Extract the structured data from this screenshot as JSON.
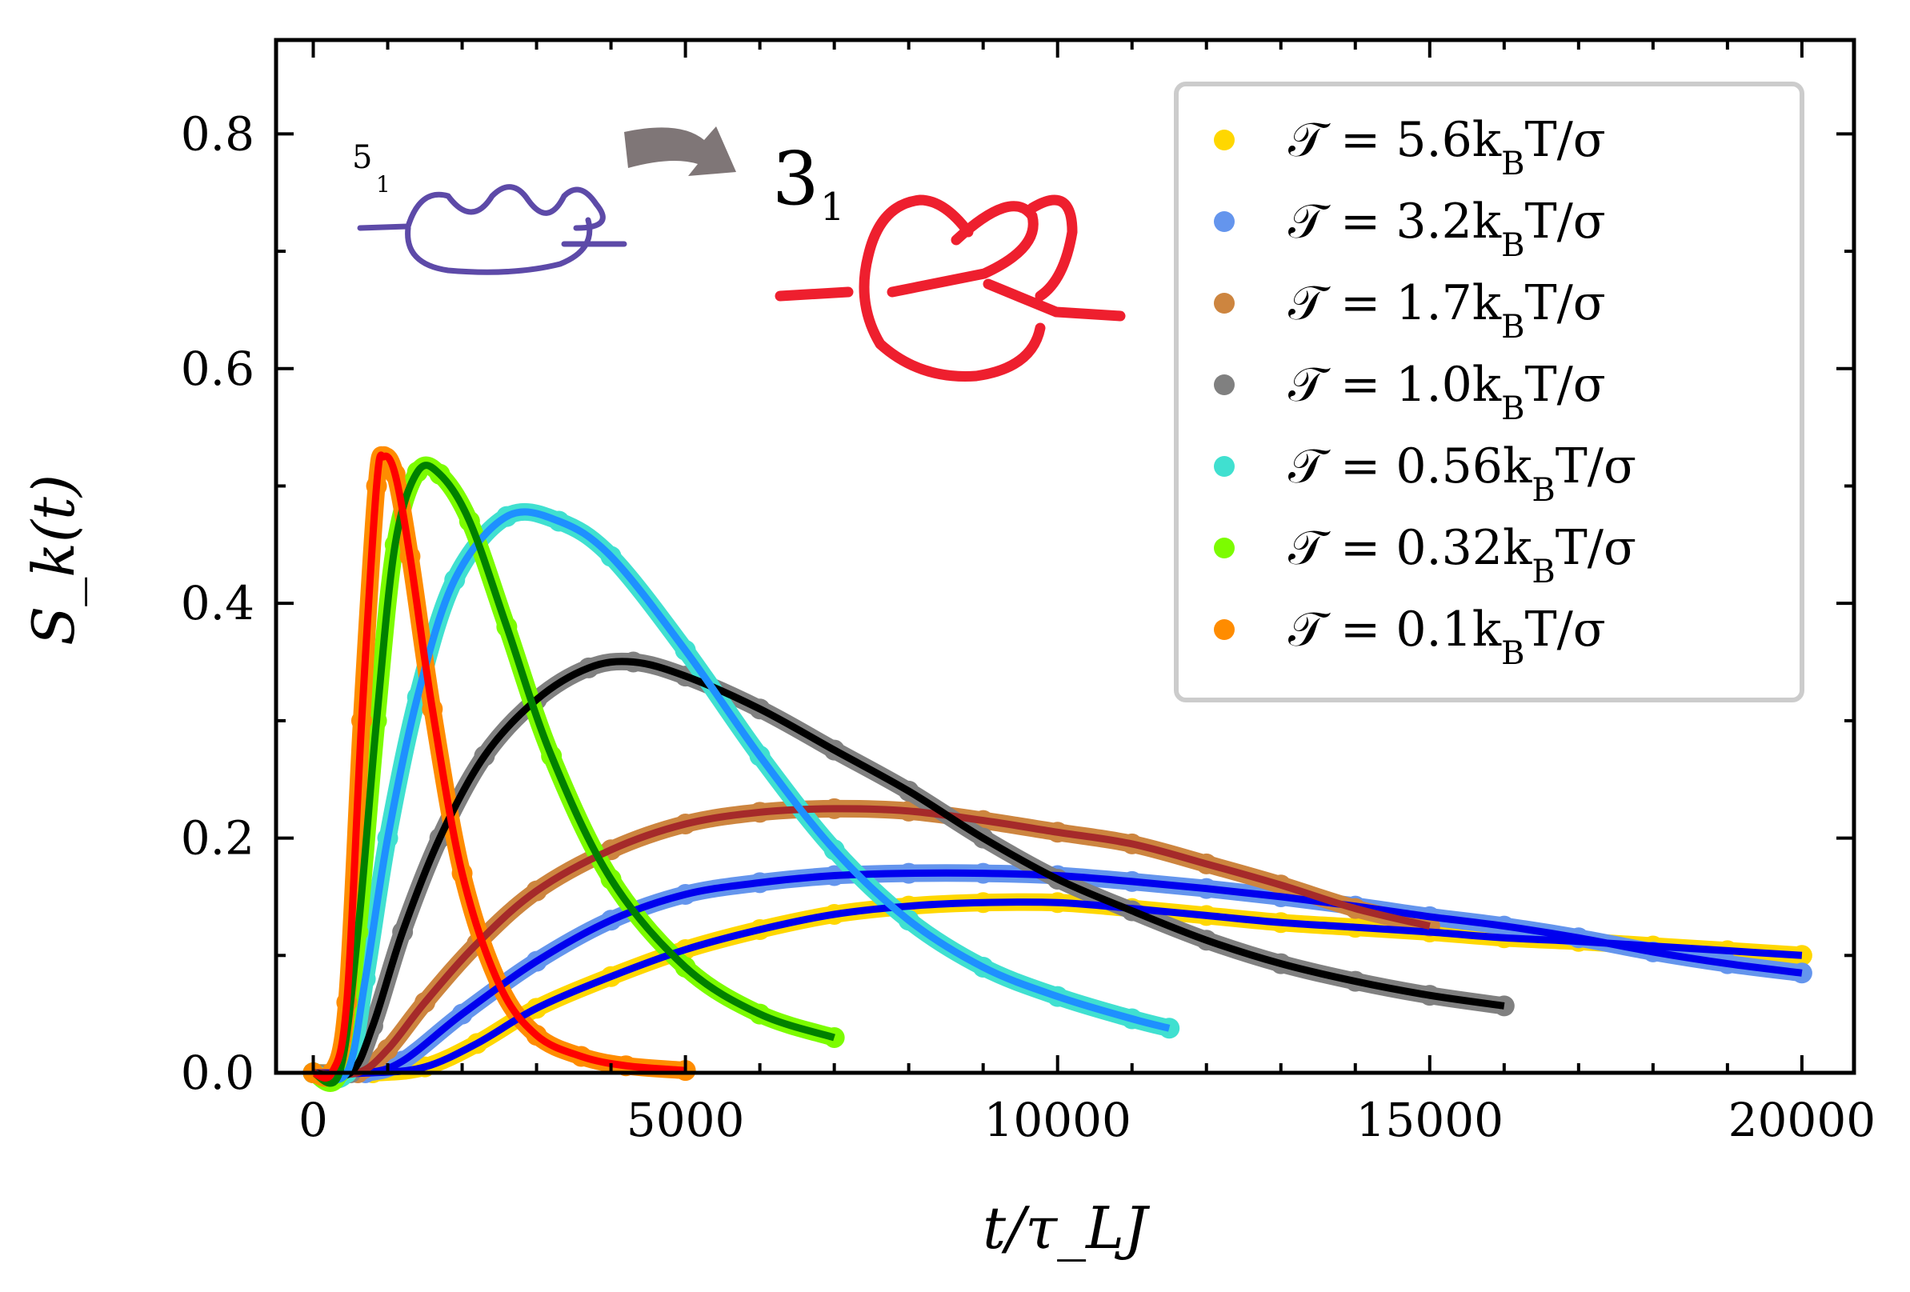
{
  "chart_data": {
    "type": "line",
    "xlabel": "t/τ_LJ",
    "ylabel": "S_k(t)",
    "xlim": [
      -500,
      20700
    ],
    "ylim": [
      0.0,
      0.88
    ],
    "xticks": [
      0,
      5000,
      10000,
      15000,
      20000
    ],
    "xtick_labels": [
      "0",
      "5000",
      "10000",
      "15000",
      "20000"
    ],
    "yticks": [
      0.0,
      0.2,
      0.4,
      0.6,
      0.8
    ],
    "ytick_labels": [
      "0.0",
      "0.2",
      "0.4",
      "0.6",
      "0.8"
    ],
    "grid": false,
    "legend_position": "top-right",
    "inset": {
      "knot_from": "5",
      "knot_from_sub": "1",
      "knot_to": "3",
      "knot_to_sub": "1"
    },
    "series": [
      {
        "name": "𝒯 = 5.6k_BT/σ",
        "label_main": "𝒯 = 5.6k",
        "label_sub": "B",
        "label_end": "T/σ",
        "marker_color": "#FFD700",
        "fit_color": "#0000EE",
        "x": [
          0,
          800,
          1500,
          2200,
          3000,
          4000,
          5000,
          6000,
          7000,
          8000,
          9000,
          10000,
          11000,
          12000,
          13000,
          14000,
          15000,
          16000,
          17000,
          18000,
          19000,
          20000
        ],
        "y": [
          0.0,
          0.0,
          0.005,
          0.025,
          0.055,
          0.082,
          0.105,
          0.122,
          0.135,
          0.142,
          0.145,
          0.145,
          0.14,
          0.134,
          0.128,
          0.124,
          0.12,
          0.115,
          0.112,
          0.108,
          0.104,
          0.1
        ]
      },
      {
        "name": "𝒯 = 3.2k_BT/σ",
        "label_main": "𝒯 = 3.2k",
        "label_sub": "B",
        "label_end": "T/σ",
        "marker_color": "#6495ED",
        "fit_color": "#0000EE",
        "x": [
          0,
          700,
          1200,
          2000,
          3000,
          4000,
          5000,
          6000,
          7000,
          8000,
          9000,
          10000,
          11000,
          12000,
          13000,
          14000,
          15000,
          16000,
          17000,
          18000,
          19000,
          20000
        ],
        "y": [
          0.0,
          0.0,
          0.01,
          0.05,
          0.095,
          0.13,
          0.152,
          0.162,
          0.168,
          0.17,
          0.17,
          0.168,
          0.163,
          0.157,
          0.15,
          0.142,
          0.133,
          0.125,
          0.115,
          0.103,
          0.093,
          0.085
        ]
      },
      {
        "name": "𝒯 = 1.7k_BT/σ",
        "label_main": "𝒯 = 1.7k",
        "label_sub": "B",
        "label_end": "T/σ",
        "marker_color": "#CD853F",
        "fit_color": "#A52A2A",
        "x": [
          0,
          600,
          1000,
          1500,
          2200,
          3000,
          4000,
          5000,
          6000,
          7000,
          8000,
          9000,
          10000,
          11000,
          12000,
          13000,
          14000,
          15000
        ],
        "y": [
          0.0,
          0.0,
          0.02,
          0.06,
          0.11,
          0.155,
          0.19,
          0.212,
          0.222,
          0.225,
          0.223,
          0.215,
          0.205,
          0.195,
          0.178,
          0.16,
          0.14,
          0.125
        ]
      },
      {
        "name": "𝒯 = 1.0k_BT/σ",
        "label_main": "𝒯 = 1.0k",
        "label_sub": "B",
        "label_end": "T/σ",
        "marker_color": "#808080",
        "fit_color": "#000000",
        "x": [
          0,
          500,
          800,
          1200,
          1700,
          2300,
          3000,
          3700,
          4300,
          5000,
          6000,
          7000,
          8000,
          9000,
          10000,
          11000,
          12000,
          13000,
          14000,
          15000,
          16000
        ],
        "y": [
          0.0,
          0.0,
          0.04,
          0.12,
          0.2,
          0.27,
          0.318,
          0.345,
          0.35,
          0.338,
          0.31,
          0.275,
          0.24,
          0.2,
          0.165,
          0.138,
          0.113,
          0.093,
          0.078,
          0.066,
          0.057
        ]
      },
      {
        "name": "𝒯 = 0.56k_BT/σ",
        "label_main": "𝒯 = 0.56k",
        "label_sub": "B",
        "label_end": "T/σ",
        "marker_color": "#40E0D0",
        "fit_color": "#1E90FF",
        "x": [
          0,
          450,
          700,
          1000,
          1400,
          1900,
          2600,
          3300,
          4000,
          5000,
          6000,
          7000,
          8000,
          9000,
          10000,
          11000,
          11500
        ],
        "y": [
          0.0,
          0.0,
          0.08,
          0.2,
          0.32,
          0.42,
          0.474,
          0.47,
          0.44,
          0.36,
          0.27,
          0.19,
          0.13,
          0.09,
          0.065,
          0.046,
          0.038
        ]
      },
      {
        "name": "𝒯 = 0.32k_BT/σ",
        "label_main": "𝒯 = 0.32k",
        "label_sub": "B",
        "label_end": "T/σ",
        "marker_color": "#7CFC00",
        "fit_color": "#008000",
        "x": [
          0,
          350,
          600,
          850,
          1100,
          1400,
          1700,
          2100,
          2600,
          3200,
          4000,
          5000,
          6000,
          7000
        ],
        "y": [
          0.0,
          0.0,
          0.12,
          0.3,
          0.45,
          0.512,
          0.51,
          0.47,
          0.38,
          0.27,
          0.165,
          0.09,
          0.05,
          0.03
        ]
      },
      {
        "name": "𝒯 = 0.1k_BT/σ",
        "label_main": "𝒯 = 0.1k",
        "label_sub": "B",
        "label_end": "T/σ",
        "marker_color": "#FF8C00",
        "fit_color": "#FF0000",
        "x": [
          0,
          250,
          450,
          650,
          850,
          950,
          1100,
          1300,
          1600,
          2000,
          2500,
          3000,
          3600,
          4200,
          5000
        ],
        "y": [
          0.0,
          0.0,
          0.06,
          0.3,
          0.5,
          0.525,
          0.51,
          0.44,
          0.31,
          0.17,
          0.075,
          0.032,
          0.014,
          0.006,
          0.002
        ]
      }
    ]
  }
}
